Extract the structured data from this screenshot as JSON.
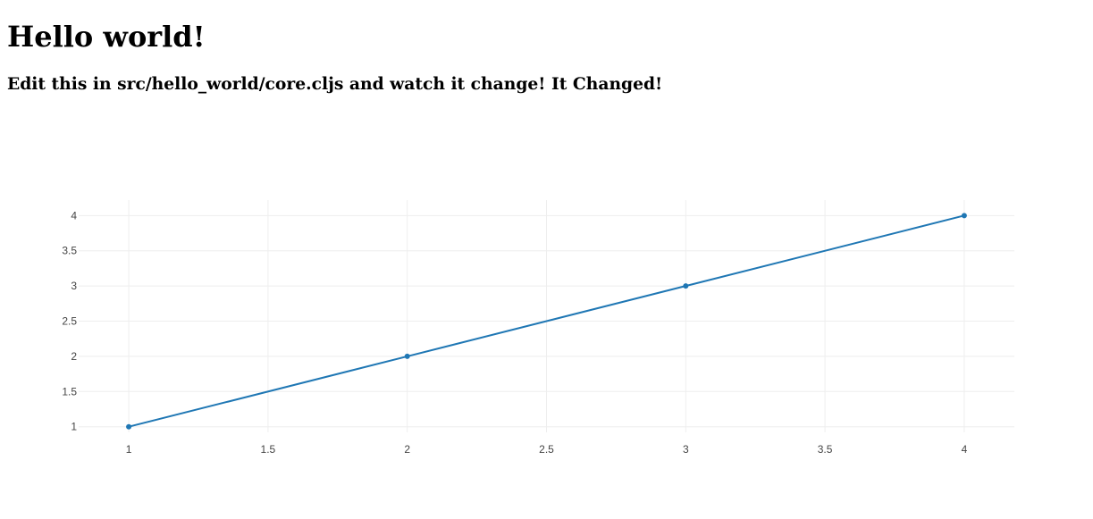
{
  "page": {
    "title": "Hello world!",
    "subtitle": "Edit this in src/hello_world/core.cljs and watch it change! It Changed!"
  },
  "chart_data": {
    "type": "line",
    "x": [
      1,
      2,
      3,
      4
    ],
    "series": [
      {
        "values": [
          1,
          2,
          3,
          4
        ],
        "color": "#1f77b4"
      }
    ],
    "xlim": [
      0.82,
      4.18
    ],
    "ylim": [
      0.92,
      4.22
    ],
    "x_ticks": [
      "1",
      "1.5",
      "2",
      "2.5",
      "3",
      "3.5",
      "4"
    ],
    "y_ticks": [
      "1",
      "1.5",
      "2",
      "2.5",
      "3",
      "3.5",
      "4"
    ],
    "grid": true,
    "markers": true,
    "legend": "none",
    "gridline_color": "#eeeeee",
    "tick_label_color": "#444444"
  }
}
